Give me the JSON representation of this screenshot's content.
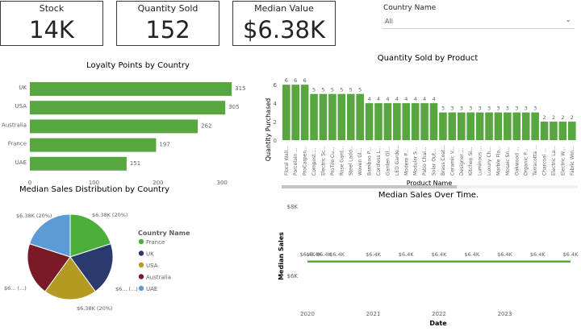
{
  "cards": [
    {
      "title": "Stock",
      "value": "14K"
    },
    {
      "title": "Quantity Sold",
      "value": "152"
    },
    {
      "title": "Median Value",
      "value": "$6.38K"
    }
  ],
  "slicer": {
    "title": "Country Name",
    "value": "All"
  },
  "colors": {
    "green": "#57a640",
    "france": "#4caf3c",
    "uk": "#2b3a6e",
    "usa": "#b39a22",
    "australia": "#7a1a26",
    "uae": "#5d9bd6"
  },
  "chart_data": [
    {
      "type": "bar",
      "orientation": "horizontal",
      "title": "Loyalty Points by Country",
      "categories": [
        "UK",
        "USA",
        "Australia",
        "France",
        "UAE"
      ],
      "values": [
        315,
        305,
        262,
        197,
        151
      ],
      "xticks": [
        "0",
        "100",
        "200",
        "300"
      ],
      "xlim": [
        0,
        335
      ]
    },
    {
      "type": "bar",
      "title": "Quantity Sold by Product",
      "xlabel": "Product Name",
      "ylabel": "Quantity Purchased",
      "ylim": [
        0,
        6.8
      ],
      "yticks": [
        "0",
        "2",
        "4",
        "6"
      ],
      "categories": [
        "Floral Wall...",
        "Porcelain ...",
        "ProCarpen...",
        "Compost ...",
        "Electric Sc...",
        "ProTile Cu...",
        "Rose Gard...",
        "Steel Ladd...",
        "Woven Gl...",
        "Bamboo P...",
        "Cordless L...",
        "Garden Gl...",
        "LED Garde...",
        "Modern P...",
        "Modular S...",
        "Patio Chai...",
        "Solar Out...",
        "Brass Coat...",
        "Ceramic V...",
        "Designer ...",
        "Kitchen Si...",
        "Luminous ...",
        "Luxury Ch...",
        "Marble Flo...",
        "Mosaic Sn...",
        "Oakwood ...",
        "Organic P...",
        "Terracotta ...",
        "Charcoal ...",
        "Electric La...",
        "Electric W...",
        "Fabric Win..."
      ],
      "values": [
        6,
        6,
        6,
        5,
        5,
        5,
        5,
        5,
        5,
        4,
        4,
        4,
        4,
        4,
        4,
        4,
        4,
        3,
        3,
        3,
        3,
        3,
        3,
        3,
        3,
        3,
        3,
        3,
        2,
        2,
        2,
        2
      ],
      "data_labels": [
        "6",
        "6",
        "6",
        "5",
        "5",
        "5",
        "5",
        "5",
        "5",
        "4",
        "4",
        "4",
        "4",
        "4",
        "4",
        "4",
        "4",
        "3",
        "3",
        "3",
        "3",
        "3",
        "3",
        "3",
        "3",
        "3",
        "3",
        "3",
        "2",
        "2",
        "2",
        "2"
      ]
    },
    {
      "type": "pie",
      "title": "Median Sales Distribution by Country",
      "legend_title": "Country Name",
      "legend_position": "right",
      "categories": [
        "France",
        "UK",
        "USA",
        "Australia",
        "UAE"
      ],
      "values": [
        20,
        20,
        20,
        20,
        20
      ],
      "slice_labels": [
        "$6.38K (20%)",
        "$6... (...)",
        "$6.38K (20%)",
        "$6... (...)",
        "$6.38K (20%)"
      ]
    },
    {
      "type": "line",
      "title": "Median Sales Over Time.",
      "xlabel": "Date",
      "ylabel": "Median Sales",
      "yticks": [
        "$6K",
        "$8K"
      ],
      "xticks": [
        "2020",
        "2021",
        "2022",
        "2023"
      ],
      "x": [
        2020.0,
        2020.1,
        2020.25,
        2020.45,
        2021.0,
        2021.5,
        2022.0,
        2022.5,
        2023.0,
        2023.5,
        2024.0
      ],
      "values": [
        6.4,
        6.4,
        6.4,
        6.4,
        6.4,
        6.4,
        6.4,
        6.4,
        6.4,
        6.4,
        6.4
      ],
      "data_labels": [
        "$6.4K",
        "$6.4K",
        "$6.4K",
        "$6.4K",
        "$6.4K",
        "$6.4K",
        "$6.4K",
        "$6.4K",
        "$6.4K",
        "$6.4K",
        "$6.4K"
      ]
    }
  ]
}
